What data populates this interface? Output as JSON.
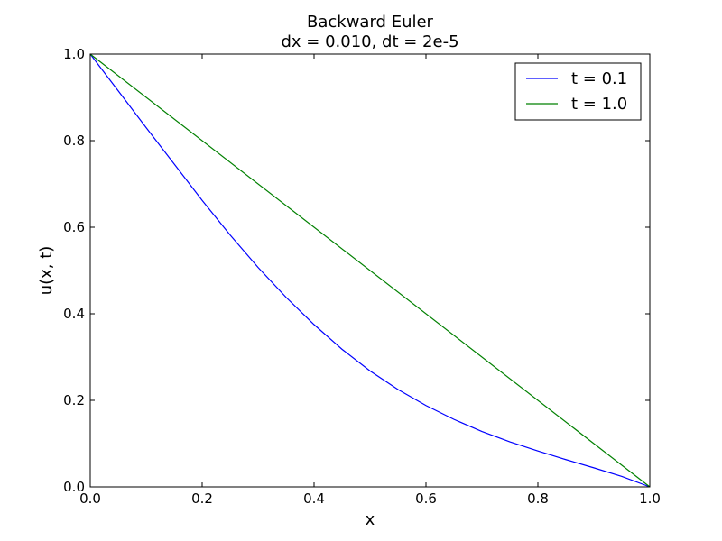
{
  "chart_data": {
    "type": "line",
    "title": "Backward Euler",
    "subtitle": "dx = 0.010, dt = 2e-5",
    "xlabel": "x",
    "ylabel": "u(x, t)",
    "xlim": [
      0.0,
      1.0
    ],
    "ylim": [
      0.0,
      1.0
    ],
    "xticks": [
      "0.0",
      "0.2",
      "0.4",
      "0.6",
      "0.8",
      "1.0"
    ],
    "yticks": [
      "0.0",
      "0.2",
      "0.4",
      "0.6",
      "0.8",
      "1.0"
    ],
    "grid": false,
    "legend_position": "top-right",
    "series": [
      {
        "name": "t = 0.1",
        "color": "#0000ff",
        "x": [
          0.0,
          0.05,
          0.1,
          0.15,
          0.2,
          0.25,
          0.3,
          0.35,
          0.4,
          0.45,
          0.5,
          0.55,
          0.6,
          0.65,
          0.7,
          0.75,
          0.8,
          0.85,
          0.9,
          0.95,
          1.0
        ],
        "y": [
          1.0,
          0.915,
          0.83,
          0.746,
          0.662,
          0.582,
          0.507,
          0.438,
          0.375,
          0.318,
          0.268,
          0.225,
          0.188,
          0.156,
          0.128,
          0.104,
          0.083,
          0.063,
          0.044,
          0.024,
          0.0
        ]
      },
      {
        "name": "t = 1.0",
        "color": "#008000",
        "x": [
          0.0,
          1.0
        ],
        "y": [
          1.0,
          0.0
        ]
      }
    ]
  }
}
